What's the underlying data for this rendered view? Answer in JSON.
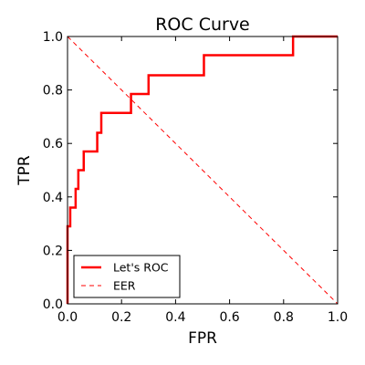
{
  "chart_data": {
    "type": "line",
    "title": "ROC Curve",
    "xlabel": "FPR",
    "ylabel": "TPR",
    "xlim": [
      0.0,
      1.0
    ],
    "ylim": [
      0.0,
      1.0
    ],
    "xticks": [
      0.0,
      0.2,
      0.4,
      0.6,
      0.8,
      1.0
    ],
    "yticks": [
      0.0,
      0.2,
      0.4,
      0.6,
      0.8,
      1.0
    ],
    "xtick_labels": [
      "0.0",
      "0.2",
      "0.4",
      "0.6",
      "0.8",
      "1.0"
    ],
    "ytick_labels": [
      "0.0",
      "0.2",
      "0.4",
      "0.6",
      "0.8",
      "1.0"
    ],
    "grid": false,
    "legend_position": "lower-left",
    "series": [
      {
        "name": "Let's ROC",
        "color": "#ff0000",
        "style": "solid",
        "x": [
          0.0,
          0.0,
          0.01,
          0.01,
          0.03,
          0.03,
          0.04,
          0.04,
          0.06,
          0.06,
          0.07,
          0.07,
          0.11,
          0.11,
          0.125,
          0.125,
          0.235,
          0.235,
          0.3,
          0.3,
          0.505,
          0.505,
          0.835,
          0.835,
          1.0
        ],
        "y": [
          0.0,
          0.29,
          0.29,
          0.36,
          0.36,
          0.43,
          0.43,
          0.5,
          0.5,
          0.57,
          0.57,
          0.57,
          0.57,
          0.64,
          0.64,
          0.714,
          0.714,
          0.785,
          0.785,
          0.855,
          0.855,
          0.93,
          0.93,
          1.0,
          1.0
        ]
      },
      {
        "name": "EER",
        "color": "#ff0000",
        "style": "dashed",
        "x": [
          0.0,
          1.0
        ],
        "y": [
          1.0,
          0.0
        ]
      }
    ]
  }
}
